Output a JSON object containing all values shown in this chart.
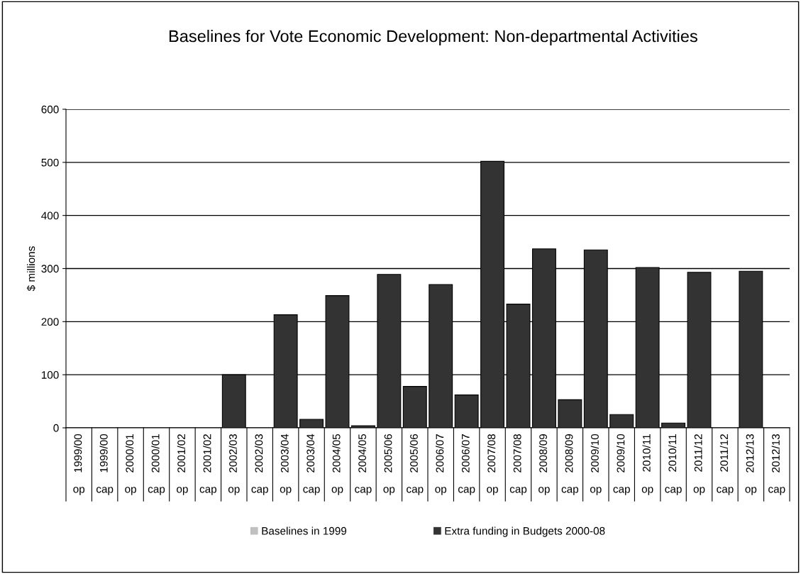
{
  "chart_data": {
    "type": "bar",
    "title": "Baselines for Vote Economic Development: Non-departmental Activities",
    "ylabel": "$ millions",
    "categories": [
      "1999/00 op",
      "1999/00 cap",
      "2000/01 op",
      "2000/01 cap",
      "2001/02 op",
      "2001/02 cap",
      "2002/03 op",
      "2002/03 cap",
      "2003/04 op",
      "2003/04 cap",
      "2004/05 op",
      "2004/05 cap",
      "2005/06 op",
      "2005/06 cap",
      "2006/07 op",
      "2006/07 cap",
      "2007/08 op",
      "2007/08 cap",
      "2008/09 op",
      "2008/09 cap",
      "2009/10 op",
      "2009/10 cap",
      "2010/11 op",
      "2010/11 cap",
      "2011/12 op",
      "2011/12 cap",
      "2012/13 op",
      "2012/13 cap"
    ],
    "stacked": true,
    "series": [
      {
        "name": "Baselines in 1999",
        "color": "#c0c0c0",
        "values": [
          0,
          0,
          0,
          0,
          0,
          0,
          0,
          0,
          0,
          0,
          0,
          0,
          0,
          0,
          0,
          0,
          0,
          0,
          0,
          0,
          0,
          0,
          0,
          0,
          0,
          0,
          0,
          0
        ]
      },
      {
        "name": "Extra funding in Budgets 2000-08",
        "color": "#333333",
        "values": [
          0,
          0,
          0,
          0,
          0,
          0,
          100,
          0,
          213,
          16,
          249,
          4,
          289,
          78,
          270,
          62,
          502,
          233,
          337,
          53,
          335,
          25,
          302,
          9,
          293,
          0,
          295,
          0
        ]
      }
    ],
    "ylim": [
      0,
      600
    ],
    "yticks": [
      0,
      100,
      200,
      300,
      400,
      500,
      600
    ],
    "grid": "y",
    "legend": "bottom"
  }
}
